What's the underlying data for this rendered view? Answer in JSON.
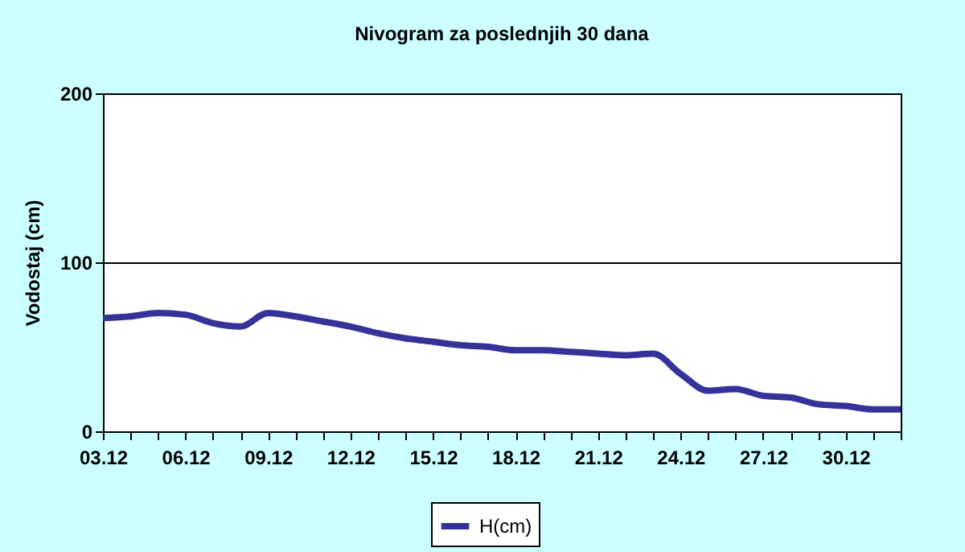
{
  "chart_data": {
    "type": "line",
    "title": "Nivogram za poslednjih 30 dana",
    "ylabel": "Vodostaj (cm)",
    "categories": [
      "03.12",
      null,
      null,
      "06.12",
      null,
      null,
      "09.12",
      null,
      null,
      "12.12",
      null,
      null,
      "15.12",
      null,
      null,
      "18.12",
      null,
      null,
      "21.12",
      null,
      null,
      "24.12",
      null,
      null,
      "27.12",
      null,
      null,
      "30.12",
      null,
      null
    ],
    "series": [
      {
        "name": "H(cm)",
        "color": "#333399",
        "values": [
          67,
          68,
          70,
          69,
          64,
          62,
          70,
          68,
          65,
          62,
          58,
          55,
          53,
          51,
          50,
          48,
          48,
          47,
          46,
          45,
          46,
          34,
          24,
          25,
          21,
          20,
          16,
          15,
          13,
          13
        ]
      }
    ],
    "ylim": [
      0,
      200
    ],
    "yticks": [
      0,
      100,
      200
    ],
    "grid": "y",
    "legend": "bottom",
    "marker": "none",
    "line_style": "solid"
  }
}
